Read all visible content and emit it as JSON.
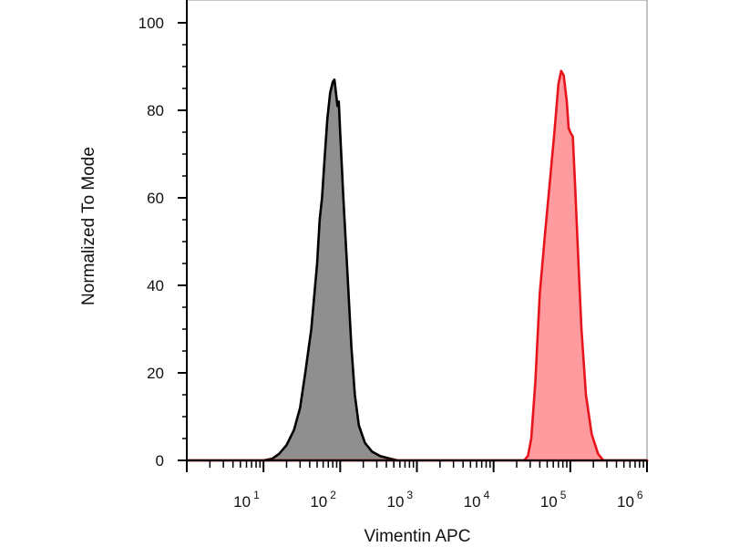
{
  "chart_data": {
    "type": "area",
    "xlabel": "Vimentin APC",
    "ylabel": "Normalized To Mode",
    "x_scale": "log",
    "xlim": [
      1.0,
      1000000.0
    ],
    "ylim": [
      0,
      100
    ],
    "grid": false,
    "legend": "none",
    "y_ticks": [
      {
        "value": 0,
        "label": "0"
      },
      {
        "value": 20,
        "label": "20"
      },
      {
        "value": 40,
        "label": "40"
      },
      {
        "value": 60,
        "label": "60"
      },
      {
        "value": 80,
        "label": "80"
      },
      {
        "value": 100,
        "label": "100"
      }
    ],
    "x_ticks": [
      {
        "value": 10,
        "base": "10",
        "exp": "1"
      },
      {
        "value": 100,
        "base": "10",
        "exp": "2"
      },
      {
        "value": 1000,
        "base": "10",
        "exp": "3"
      },
      {
        "value": 10000,
        "base": "10",
        "exp": "4"
      },
      {
        "value": 100000,
        "base": "10",
        "exp": "5"
      },
      {
        "value": 1000000,
        "base": "10",
        "exp": "6"
      }
    ],
    "series": [
      {
        "color": "#000000",
        "fill": "#8f8f8f",
        "points": [
          [
            1,
            0
          ],
          [
            10,
            0
          ],
          [
            13,
            0.4
          ],
          [
            16,
            1.5
          ],
          [
            20,
            3.5
          ],
          [
            25,
            7
          ],
          [
            30,
            12
          ],
          [
            35,
            20
          ],
          [
            42,
            30
          ],
          [
            50,
            45
          ],
          [
            54,
            55
          ],
          [
            58,
            60
          ],
          [
            62,
            68
          ],
          [
            68,
            78
          ],
          [
            74,
            84
          ],
          [
            80,
            86.5
          ],
          [
            84,
            87
          ],
          [
            88,
            84
          ],
          [
            92,
            81
          ],
          [
            96,
            82
          ],
          [
            100,
            75
          ],
          [
            110,
            60
          ],
          [
            125,
            42
          ],
          [
            140,
            26
          ],
          [
            155,
            15
          ],
          [
            175,
            8
          ],
          [
            210,
            4
          ],
          [
            260,
            2
          ],
          [
            330,
            1
          ],
          [
            450,
            0.4
          ],
          [
            560,
            0
          ],
          [
            1000000,
            0
          ]
        ]
      },
      {
        "color": "#e8141c",
        "fill": "#ff9a9e",
        "points": [
          [
            1,
            0
          ],
          [
            25000,
            0
          ],
          [
            28000,
            1
          ],
          [
            31000,
            5
          ],
          [
            35000,
            18
          ],
          [
            40000,
            38
          ],
          [
            47000,
            52
          ],
          [
            55000,
            65
          ],
          [
            62000,
            75
          ],
          [
            70000,
            86
          ],
          [
            76000,
            89
          ],
          [
            82000,
            88
          ],
          [
            90000,
            82
          ],
          [
            95000,
            76
          ],
          [
            100000,
            75
          ],
          [
            108000,
            74
          ],
          [
            116000,
            62
          ],
          [
            127000,
            46
          ],
          [
            140000,
            30
          ],
          [
            160000,
            15
          ],
          [
            190000,
            6
          ],
          [
            230000,
            1.5
          ],
          [
            270000,
            0
          ],
          [
            1000000,
            0
          ]
        ]
      }
    ]
  }
}
